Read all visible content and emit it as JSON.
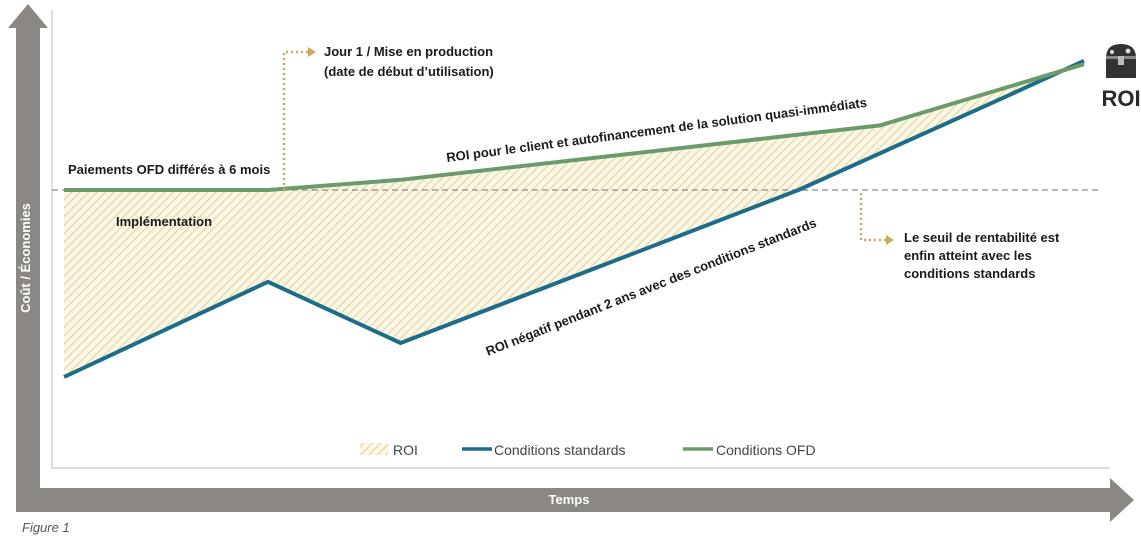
{
  "chart_data": {
    "type": "line",
    "y_axis_label": "Coût / Économies",
    "x_axis_label": "Temps",
    "series": [
      {
        "name": "Conditions standards",
        "color": "#1d6d8a",
        "points": [
          [
            0,
            -0.55
          ],
          [
            1,
            -0.27
          ],
          [
            1.65,
            -0.45
          ],
          [
            3.6,
            0.0
          ],
          [
            4.6,
            0.27
          ],
          [
            5.0,
            0.38
          ]
        ]
      },
      {
        "name": "Conditions OFD",
        "color": "#6b9a6b",
        "points": [
          [
            0,
            0.0
          ],
          [
            1,
            0.0
          ],
          [
            1.65,
            0.03
          ],
          [
            4.0,
            0.19
          ],
          [
            5.0,
            0.37
          ]
        ]
      }
    ],
    "area": {
      "name": "ROI",
      "color": "#e6d9a0"
    },
    "baseline": 0,
    "annotations": {
      "day1_line1": "Jour 1 / Mise en production",
      "day1_line2": "(date de début d’utilisation)",
      "deferred": "Paiements OFD différés à 6 mois",
      "implementation": "Implémentation",
      "roi_client": "ROI pour le client et autofinancement de la solution quasi-immédiats",
      "roi_negative": "ROI négatif pendant 2 ans avec des conditions standards",
      "breakeven_1": "Le seuil de rentabilité est",
      "breakeven_2": "enfin atteint avec les",
      "breakeven_3": "conditions standards"
    },
    "roi_badge": "ROI",
    "legend": [
      "ROI",
      "Conditions standards",
      "Conditions OFD"
    ]
  },
  "caption": "Figure 1"
}
